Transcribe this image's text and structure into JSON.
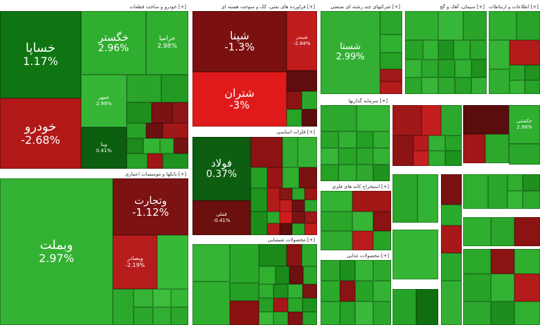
{
  "colors": {
    "strong_green": "#0b6e0b",
    "green": "#1f961f",
    "light_green": "#2fb52f",
    "pale_green": "#3fc43f",
    "dark_red": "#6e0d0d",
    "red": "#a31414",
    "bright_red": "#dd1a1a"
  },
  "sections": [
    {
      "title": "خودرو و ساخت قطعات [+]"
    },
    {
      "title": "فراورده های نفتی، کک و سوخت هسته ای [+]"
    },
    {
      "title": "شرکتهای چند رشته ای صنعتی [+]"
    },
    {
      "title": "سیمان، آهک و گچ [+]"
    },
    {
      "title": "اطلاعات و ارتباطات [+]"
    },
    {
      "title": "بانکها و موسسات اعتباری [+]"
    },
    {
      "title": "فلزات اساسی [+]"
    },
    {
      "title": "محصولات شیمیایی [+]"
    },
    {
      "title": "سرمایه گذاریها [+]"
    },
    {
      "title": "استخراج کانه های فلزی [+]"
    },
    {
      "title": "محصولات غذایی [+]"
    }
  ],
  "tiles": {
    "khesapa": {
      "name": "خساپا",
      "pct": "1.17%"
    },
    "khodro": {
      "name": "خودرو",
      "pct": "-2.68%"
    },
    "khegostar": {
      "name": "خگستر",
      "pct": "2.96%"
    },
    "kharampa": {
      "name": "خراميا",
      "pct": "2.98%"
    },
    "khemehvar": {
      "name": "خمهر",
      "pct": "2.99%"
    },
    "vbimlat": {
      "name": "وبملت",
      "pct": "2.97%"
    },
    "vtejarat": {
      "name": "وتجارت",
      "pct": "-1.12%"
    },
    "vbesader": {
      "name": "وبصادر",
      "pct": "-2.19%"
    },
    "shepna": {
      "name": "شپنا",
      "pct": "-1.3%"
    },
    "shetran": {
      "name": "شتران",
      "pct": "-3%"
    },
    "sheband": {
      "name": "شبندر",
      "pct": "-2.84%"
    },
    "shasta": {
      "name": "شستا",
      "pct": "2.99%"
    },
    "foolad": {
      "name": "فولاد",
      "pct": "0.37%"
    },
    "fameli": {
      "name": "فملی",
      "pct": "-0.41%"
    },
    "hekashti": {
      "name": "حکشتی",
      "pct": "2.98%"
    },
    "vena": {
      "name": "وپنا",
      "pct": "0.41%"
    }
  }
}
